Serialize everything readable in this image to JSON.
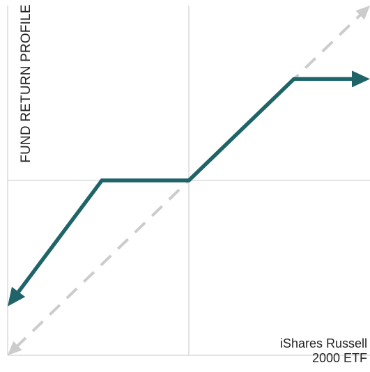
{
  "chart_data": {
    "type": "line",
    "ylabel": "FUND RETURN PROFILE",
    "xlabel_lines": [
      "iShares Russell",
      "2000 ETF"
    ],
    "xlim": [
      -100,
      100
    ],
    "ylim": [
      -100,
      100
    ],
    "grid": false,
    "series": [
      {
        "values": [
          {
            "x": -100,
            "y": -72
          },
          {
            "x": -48,
            "y": 0
          },
          {
            "x": 0,
            "y": 0
          },
          {
            "x": 58,
            "y": 58
          },
          {
            "x": 100,
            "y": 58
          }
        ],
        "color": "#1f6468",
        "style": "solid"
      },
      {
        "values": [
          {
            "x": -100,
            "y": -100
          },
          {
            "x": 100,
            "y": 100
          }
        ],
        "color": "#cccccc",
        "style": "dashed"
      }
    ]
  }
}
